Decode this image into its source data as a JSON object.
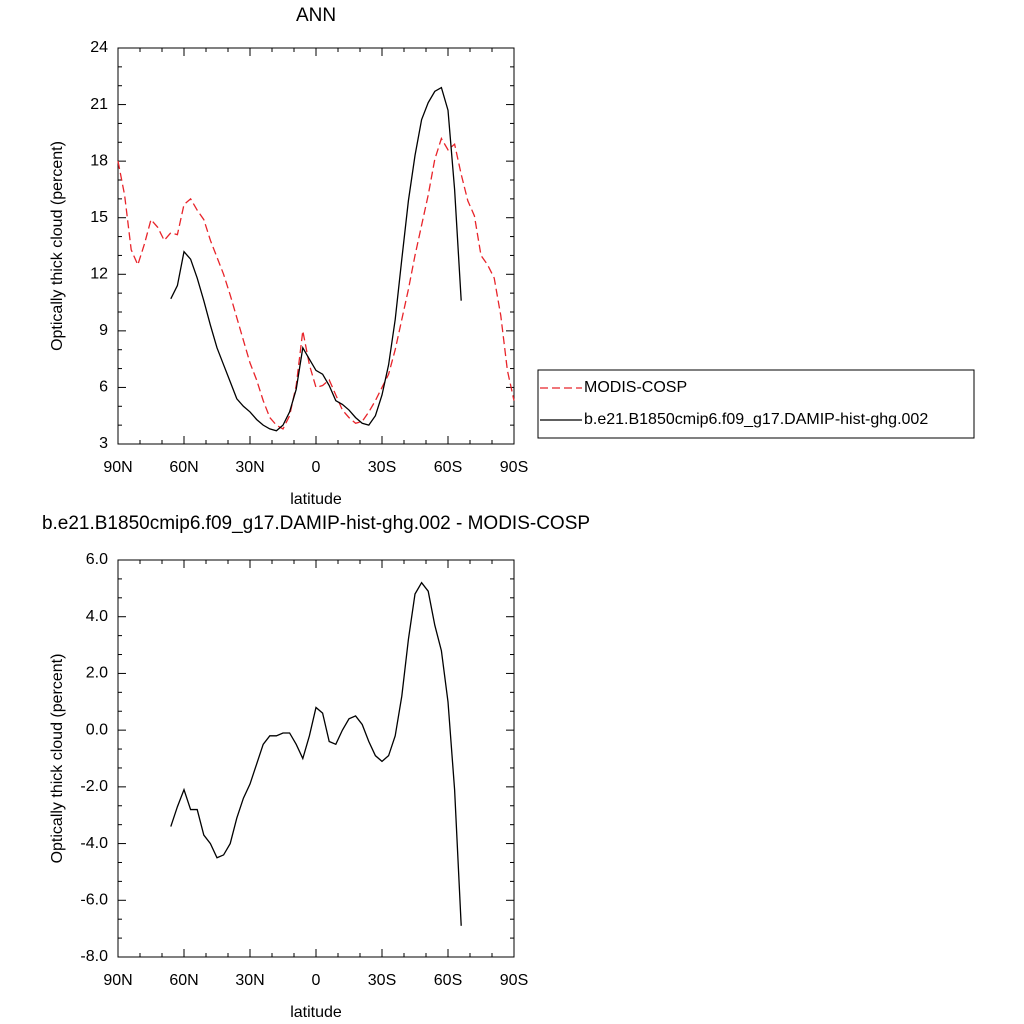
{
  "chart_data": [
    {
      "type": "line",
      "title": "ANN",
      "xlabel": "latitude",
      "ylabel": "Optically thick cloud (percent)",
      "x": [
        90,
        87,
        84,
        81,
        78,
        75,
        72,
        69,
        66,
        63,
        60,
        57,
        54,
        51,
        48,
        45,
        42,
        39,
        36,
        33,
        30,
        27,
        24,
        21,
        18,
        15,
        12,
        9,
        6,
        3,
        0,
        -3,
        -6,
        -9,
        -12,
        -15,
        -18,
        -21,
        -24,
        -27,
        -30,
        -33,
        -36,
        -39,
        -42,
        -45,
        -48,
        -51,
        -54,
        -57,
        -60,
        -63,
        -66,
        -69,
        -72,
        -75,
        -78,
        -81,
        -84,
        -87,
        -90
      ],
      "series": [
        {
          "name": "MODIS-COSP",
          "color": "#e8242a",
          "line_style": "dashed",
          "values": [
            18.0,
            16.2,
            13.3,
            12.5,
            13.6,
            14.9,
            14.5,
            13.8,
            14.2,
            14.1,
            15.7,
            16.0,
            15.4,
            14.9,
            13.8,
            12.9,
            12.0,
            10.9,
            9.7,
            8.5,
            7.3,
            6.4,
            5.3,
            4.4,
            4.0,
            3.8,
            4.5,
            6.1,
            9.0,
            7.2,
            6.0,
            6.1,
            6.4,
            5.6,
            4.8,
            4.4,
            4.1,
            4.2,
            4.7,
            5.3,
            6.0,
            6.7,
            8.0,
            9.6,
            11.2,
            13.0,
            14.6,
            16.2,
            18.1,
            19.2,
            18.6,
            18.9,
            17.3,
            15.9,
            15.1,
            13.0,
            12.5,
            11.8,
            9.8,
            6.9,
            5.3
          ]
        },
        {
          "name": "b.e21.B1850cmip6.f09_g17.DAMIP-hist-ghg.002",
          "color": "#000000",
          "line_style": "solid",
          "values": [
            null,
            null,
            null,
            null,
            null,
            null,
            null,
            null,
            10.7,
            11.4,
            13.2,
            12.8,
            11.8,
            10.6,
            9.3,
            8.1,
            7.2,
            6.3,
            5.4,
            5.0,
            4.7,
            4.3,
            4.0,
            3.8,
            3.7,
            4.0,
            4.7,
            5.9,
            8.1,
            7.5,
            6.9,
            6.7,
            6.1,
            5.3,
            5.1,
            4.8,
            4.4,
            4.1,
            4.0,
            4.5,
            5.6,
            7.2,
            9.6,
            12.8,
            15.9,
            18.3,
            20.2,
            21.1,
            21.7,
            21.9,
            20.7,
            16.5,
            10.6,
            null,
            null,
            null,
            null,
            null,
            null,
            null,
            null
          ]
        }
      ],
      "xlim": [
        90,
        -90
      ],
      "xticks": [
        {
          "value": 90,
          "label": "90N"
        },
        {
          "value": 60,
          "label": "60N"
        },
        {
          "value": 30,
          "label": "30N"
        },
        0,
        {
          "value": -30,
          "label": "30S"
        },
        {
          "value": -60,
          "label": "60S"
        },
        {
          "value": -90,
          "label": "90S"
        }
      ],
      "ylim": [
        3,
        24
      ],
      "yticks": [
        3,
        6,
        9,
        12,
        15,
        18,
        21,
        24
      ],
      "legend": "right"
    },
    {
      "type": "line",
      "title": "b.e21.B1850cmip6.f09_g17.DAMIP-hist-ghg.002 - MODIS-COSP",
      "xlabel": "latitude",
      "ylabel": "Optically thick cloud (percent)",
      "x": [
        66,
        63,
        60,
        57,
        54,
        51,
        48,
        45,
        42,
        39,
        36,
        33,
        30,
        27,
        24,
        21,
        18,
        15,
        12,
        9,
        6,
        3,
        0,
        -3,
        -6,
        -9,
        -12,
        -15,
        -18,
        -21,
        -24,
        -27,
        -30,
        -33,
        -36,
        -39,
        -42,
        -45,
        -48,
        -51,
        -54,
        -57,
        -60,
        -63,
        -66
      ],
      "series": [
        {
          "color": "#000000",
          "line_style": "solid",
          "values": [
            -3.4,
            -2.7,
            -2.1,
            -2.8,
            -2.8,
            -3.7,
            -4.0,
            -4.5,
            -4.4,
            -4.0,
            -3.1,
            -2.4,
            -1.9,
            -1.2,
            -0.5,
            -0.2,
            -0.2,
            -0.1,
            -0.1,
            -0.5,
            -1.0,
            -0.2,
            0.8,
            0.6,
            -0.4,
            -0.5,
            0,
            0.4,
            0.5,
            0.2,
            -0.4,
            -0.9,
            -1.1,
            -0.9,
            -0.2,
            1.2,
            3.2,
            4.8,
            5.2,
            4.9,
            3.7,
            2.8,
            1.0,
            -2.1,
            -6.9
          ]
        }
      ],
      "xlim": [
        90,
        -90
      ],
      "xticks": [
        {
          "value": 90,
          "label": "90N"
        },
        {
          "value": 60,
          "label": "60N"
        },
        {
          "value": 30,
          "label": "30N"
        },
        0,
        {
          "value": -30,
          "label": "30S"
        },
        {
          "value": -60,
          "label": "60S"
        },
        {
          "value": -90,
          "label": "90S"
        }
      ],
      "ylim": [
        -8,
        6
      ],
      "yticks": [
        {
          "value": -8,
          "label": "-8.0"
        },
        {
          "value": -6,
          "label": "-6.0"
        },
        {
          "value": -4,
          "label": "-4.0"
        },
        {
          "value": -2,
          "label": "-2.0"
        },
        {
          "value": 0,
          "label": "0.0"
        },
        {
          "value": 2,
          "label": "2.0"
        },
        {
          "value": 4,
          "label": "4.0"
        },
        {
          "value": 6,
          "label": "6.0"
        }
      ]
    }
  ]
}
